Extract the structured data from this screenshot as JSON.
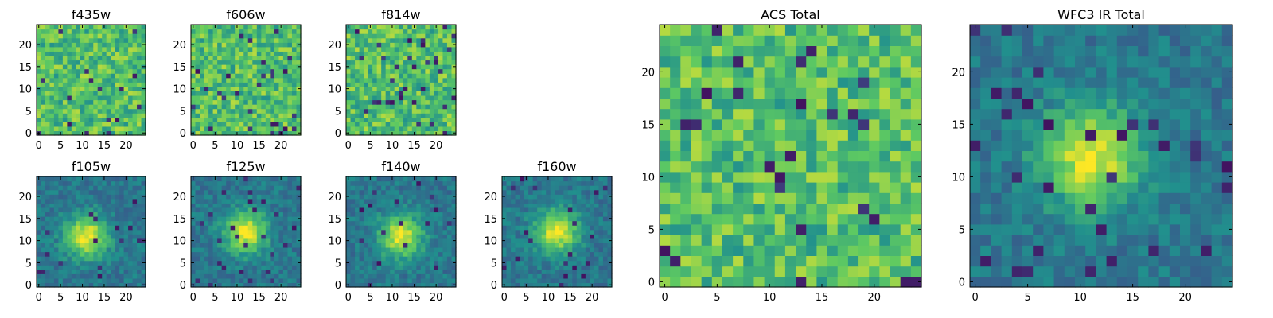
{
  "figure": {
    "colormap": "viridis",
    "colormap_stops": [
      "#440154",
      "#3b528b",
      "#21908d",
      "#5dc962",
      "#fde725"
    ],
    "background": "#ffffff"
  },
  "chart_data": [
    {
      "type": "heatmap",
      "title": "f435w",
      "xlabel": "",
      "ylabel": "",
      "grid_size": [
        25,
        25
      ],
      "xlim": [
        0,
        24
      ],
      "ylim": [
        0,
        24
      ],
      "xticks": [
        "0",
        "5",
        "10",
        "15",
        "20"
      ],
      "yticks": [
        "0",
        "5",
        "10",
        "15",
        "20"
      ],
      "profile": "noise",
      "center": [
        12,
        12
      ],
      "seed": 3
    },
    {
      "type": "heatmap",
      "title": "f606w",
      "xlabel": "",
      "ylabel": "",
      "grid_size": [
        25,
        25
      ],
      "xlim": [
        0,
        24
      ],
      "ylim": [
        0,
        24
      ],
      "xticks": [
        "0",
        "5",
        "10",
        "15",
        "20"
      ],
      "yticks": [
        "0",
        "5",
        "10",
        "15",
        "20"
      ],
      "profile": "noise",
      "center": [
        12,
        12
      ],
      "seed": 7
    },
    {
      "type": "heatmap",
      "title": "f814w",
      "xlabel": "",
      "ylabel": "",
      "grid_size": [
        25,
        25
      ],
      "xlim": [
        0,
        24
      ],
      "ylim": [
        0,
        24
      ],
      "xticks": [
        "0",
        "5",
        "10",
        "15",
        "20"
      ],
      "yticks": [
        "0",
        "5",
        "10",
        "15",
        "20"
      ],
      "profile": "noise",
      "center": [
        12,
        12
      ],
      "seed": 11
    },
    {
      "type": "heatmap",
      "title": "f105w",
      "xlabel": "",
      "ylabel": "",
      "grid_size": [
        25,
        25
      ],
      "xlim": [
        0,
        24
      ],
      "ylim": [
        0,
        24
      ],
      "xticks": [
        "0",
        "5",
        "10",
        "15",
        "20"
      ],
      "yticks": [
        "0",
        "5",
        "10",
        "15",
        "20"
      ],
      "profile": "source",
      "center": [
        11,
        11
      ],
      "seed": 17
    },
    {
      "type": "heatmap",
      "title": "f125w",
      "xlabel": "",
      "ylabel": "",
      "grid_size": [
        25,
        25
      ],
      "xlim": [
        0,
        24
      ],
      "ylim": [
        0,
        24
      ],
      "xticks": [
        "0",
        "5",
        "10",
        "15",
        "20"
      ],
      "yticks": [
        "0",
        "5",
        "10",
        "15",
        "20"
      ],
      "profile": "source",
      "center": [
        12,
        12
      ],
      "seed": 23
    },
    {
      "type": "heatmap",
      "title": "f140w",
      "xlabel": "",
      "ylabel": "",
      "grid_size": [
        25,
        25
      ],
      "xlim": [
        0,
        24
      ],
      "ylim": [
        0,
        24
      ],
      "xticks": [
        "0",
        "5",
        "10",
        "15",
        "20"
      ],
      "yticks": [
        "0",
        "5",
        "10",
        "15",
        "20"
      ],
      "profile": "source",
      "center": [
        12,
        11
      ],
      "seed": 29
    },
    {
      "type": "heatmap",
      "title": "f160w",
      "xlabel": "",
      "ylabel": "",
      "grid_size": [
        25,
        25
      ],
      "xlim": [
        0,
        24
      ],
      "ylim": [
        0,
        24
      ],
      "xticks": [
        "0",
        "5",
        "10",
        "15",
        "20"
      ],
      "yticks": [
        "0",
        "5",
        "10",
        "15",
        "20"
      ],
      "profile": "source",
      "center": [
        12,
        12
      ],
      "seed": 31
    },
    {
      "type": "heatmap",
      "title": "ACS Total",
      "xlabel": "",
      "ylabel": "",
      "grid_size": [
        25,
        25
      ],
      "xlim": [
        0,
        24
      ],
      "ylim": [
        0,
        24
      ],
      "xticks": [
        "0",
        "5",
        "10",
        "15",
        "20"
      ],
      "yticks": [
        "0",
        "5",
        "10",
        "15",
        "20"
      ],
      "profile": "noise",
      "center": [
        12,
        12
      ],
      "seed": 41
    },
    {
      "type": "heatmap",
      "title": "WFC3 IR Total",
      "xlabel": "",
      "ylabel": "",
      "grid_size": [
        25,
        25
      ],
      "xlim": [
        0,
        24
      ],
      "ylim": [
        0,
        24
      ],
      "xticks": [
        "0",
        "5",
        "10",
        "15",
        "20"
      ],
      "yticks": [
        "0",
        "5",
        "10",
        "15",
        "20"
      ],
      "profile": "source",
      "center": [
        11,
        12
      ],
      "seed": 53
    }
  ]
}
